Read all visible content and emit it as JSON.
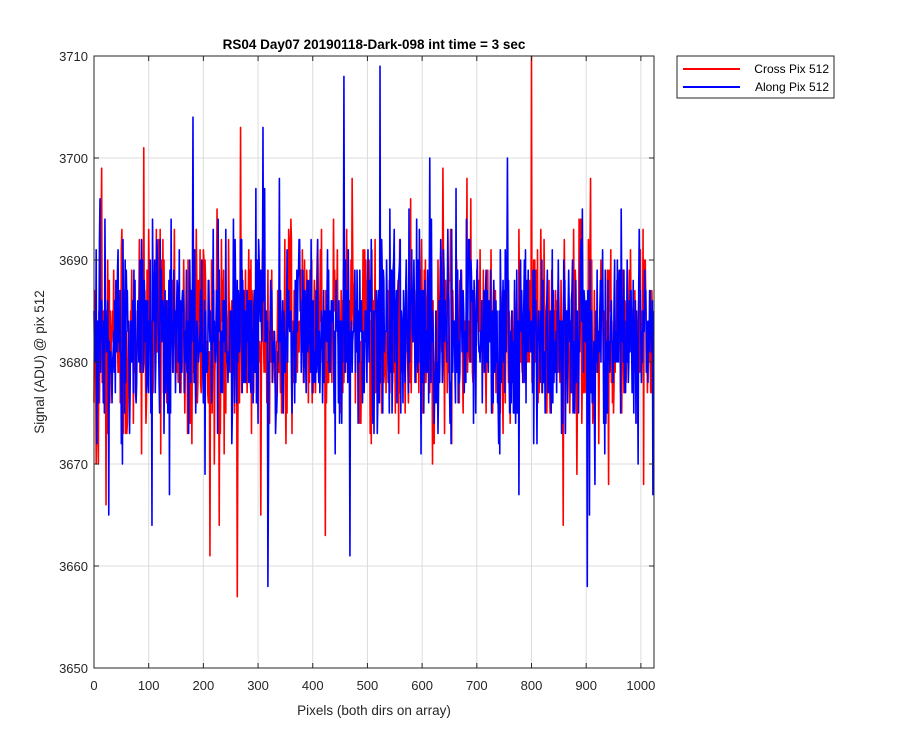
{
  "chart_data": {
    "type": "line",
    "title": "RS04 Day07 20190118-Dark-098 int time = 3 sec",
    "xlabel": "Pixels (both dirs on array)",
    "ylabel": "Signal (ADU) @ pix 512",
    "xlim": [
      0,
      1024
    ],
    "ylim": [
      3650,
      3710
    ],
    "xticks": [
      0,
      100,
      200,
      300,
      400,
      500,
      600,
      700,
      800,
      900,
      1000
    ],
    "yticks": [
      3650,
      3660,
      3670,
      3680,
      3690,
      3700,
      3710
    ],
    "grid": true,
    "legend_position": "outside-top-right",
    "series_summary": {
      "n_points": 1024,
      "mean": 3683,
      "typical_range": [
        3672,
        3694
      ]
    },
    "series": [
      {
        "name": "Cross Pix 512",
        "color": "#ff0000",
        "extremes": [
          {
            "x": 8,
            "y": 3670
          },
          {
            "x": 14,
            "y": 3699
          },
          {
            "x": 22,
            "y": 3666
          },
          {
            "x": 91,
            "y": 3701
          },
          {
            "x": 212,
            "y": 3661
          },
          {
            "x": 229,
            "y": 3664
          },
          {
            "x": 262,
            "y": 3657
          },
          {
            "x": 268,
            "y": 3703
          },
          {
            "x": 305,
            "y": 3665
          },
          {
            "x": 423,
            "y": 3663
          },
          {
            "x": 638,
            "y": 3699
          },
          {
            "x": 682,
            "y": 3698
          },
          {
            "x": 800,
            "y": 3710
          },
          {
            "x": 858,
            "y": 3664
          },
          {
            "x": 1005,
            "y": 3668
          }
        ]
      },
      {
        "name": "Along Pix 512",
        "color": "#0000ff",
        "extremes": [
          {
            "x": 11,
            "y": 3696
          },
          {
            "x": 27,
            "y": 3665
          },
          {
            "x": 106,
            "y": 3664
          },
          {
            "x": 181,
            "y": 3704
          },
          {
            "x": 309,
            "y": 3703
          },
          {
            "x": 318,
            "y": 3658
          },
          {
            "x": 457,
            "y": 3708
          },
          {
            "x": 468,
            "y": 3661
          },
          {
            "x": 523,
            "y": 3709
          },
          {
            "x": 614,
            "y": 3700
          },
          {
            "x": 756,
            "y": 3700
          },
          {
            "x": 777,
            "y": 3667
          },
          {
            "x": 902,
            "y": 3658
          },
          {
            "x": 906,
            "y": 3665
          },
          {
            "x": 1022,
            "y": 3667
          }
        ]
      }
    ]
  }
}
